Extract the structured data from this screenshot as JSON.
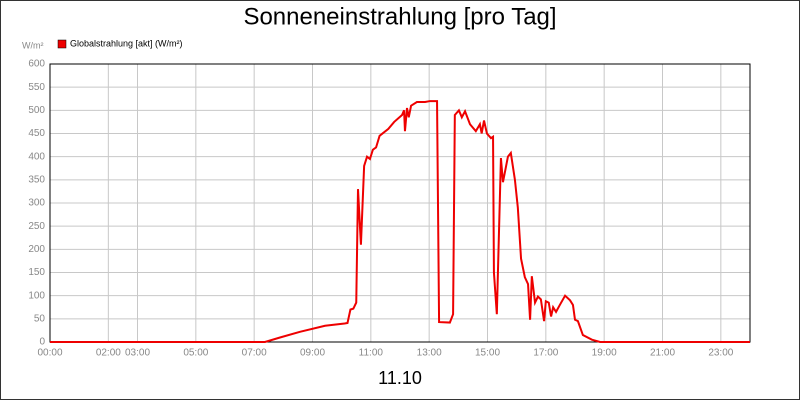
{
  "chart_data": {
    "type": "line",
    "title": "Sonneneinstrahlung [pro Tag]",
    "y_label": "W/m²",
    "x_label": "11.10",
    "x": [
      0,
      7.37,
      7.9,
      8.57,
      9.43,
      10.1,
      10.2,
      10.3,
      10.4,
      10.5,
      10.56,
      10.66,
      10.77,
      10.87,
      10.97,
      11.07,
      11.18,
      11.3,
      11.6,
      11.8,
      12.07,
      12.14,
      12.17,
      12.24,
      12.3,
      12.38,
      12.58,
      12.86,
      13.03,
      13.27,
      13.34,
      13.71,
      13.82,
      13.88,
      14.02,
      14.12,
      14.23,
      14.4,
      14.6,
      14.74,
      14.8,
      14.88,
      14.98,
      15.12,
      15.19,
      15.22,
      15.32,
      15.46,
      15.53,
      15.7,
      15.8,
      15.94,
      16.04,
      16.15,
      16.28,
      16.39,
      16.46,
      16.52,
      16.63,
      16.73,
      16.83,
      16.94,
      17.0,
      17.1,
      17.18,
      17.25,
      17.35,
      17.48,
      17.66,
      17.83,
      17.93,
      18.0,
      18.1,
      18.27,
      18.58,
      18.86,
      24
    ],
    "series": [
      {
        "name": "Globalstrahlung [akt] (W/m²)",
        "color": "#ee0000",
        "values": [
          0,
          0,
          10,
          22,
          35,
          40,
          41,
          70,
          72,
          85,
          330,
          210,
          380,
          400,
          395,
          415,
          420,
          445,
          460,
          475,
          490,
          500,
          455,
          505,
          485,
          510,
          518,
          518,
          520,
          520,
          43,
          42,
          60,
          490,
          500,
          485,
          498,
          470,
          455,
          470,
          450,
          478,
          450,
          440,
          443,
          150,
          60,
          397,
          345,
          400,
          408,
          350,
          290,
          180,
          140,
          125,
          48,
          142,
          85,
          98,
          92,
          45,
          88,
          85,
          55,
          75,
          65,
          80,
          100,
          90,
          80,
          48,
          45,
          15,
          5,
          0,
          0
        ]
      }
    ],
    "xlim": [
      0,
      24
    ],
    "xticks": [
      {
        "value": 0,
        "label": "00:00"
      },
      {
        "value": 2,
        "label": "02:00"
      },
      {
        "value": 3,
        "label": "03:00"
      },
      {
        "value": 5,
        "label": "05:00"
      },
      {
        "value": 7,
        "label": "07:00"
      },
      {
        "value": 9,
        "label": "09:00"
      },
      {
        "value": 11,
        "label": "11:00"
      },
      {
        "value": 13,
        "label": "13:00"
      },
      {
        "value": 15,
        "label": "15:00"
      },
      {
        "value": 17,
        "label": "17:00"
      },
      {
        "value": 19,
        "label": "19:00"
      },
      {
        "value": 21,
        "label": "21:00"
      },
      {
        "value": 23,
        "label": "23:00"
      }
    ],
    "ylim": [
      0,
      600
    ],
    "yticks": [
      0,
      50,
      100,
      150,
      200,
      250,
      300,
      350,
      400,
      450,
      500,
      550,
      600
    ],
    "grid": true
  }
}
